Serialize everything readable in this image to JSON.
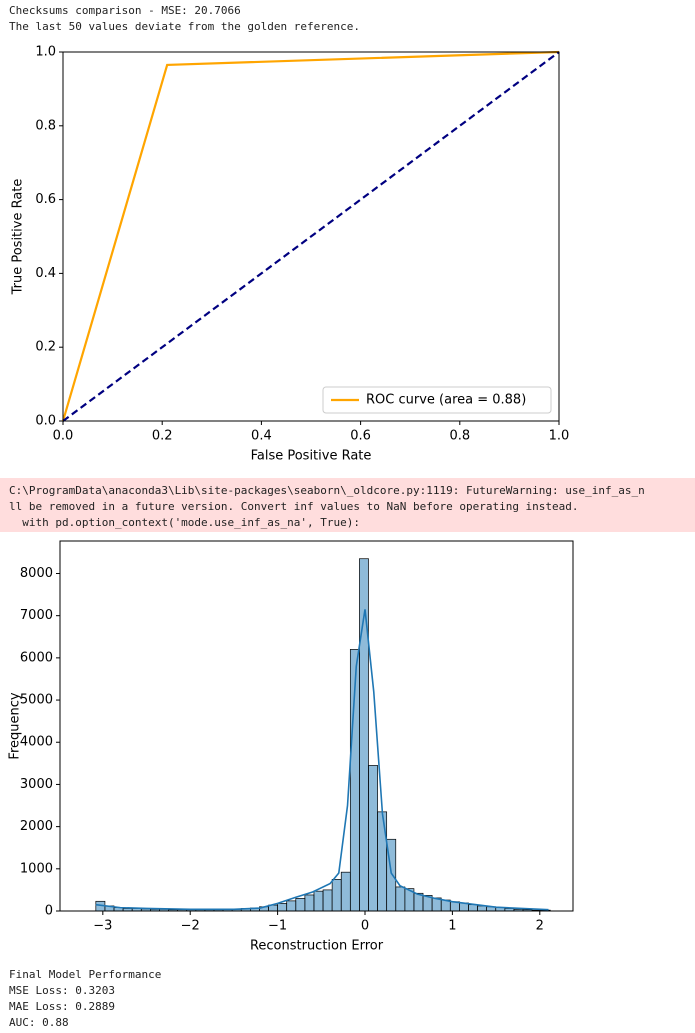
{
  "log_top": [
    "Checksums comparison - MSE: 20.7066",
    "The last 50 values deviate from the golden reference."
  ],
  "warning": [
    "C:\\ProgramData\\anaconda3\\Lib\\site-packages\\seaborn\\_oldcore.py:1119: FutureWarning: use_inf_as_n",
    "ll be removed in a future version. Convert inf values to NaN before operating instead.",
    "  with pd.option_context('mode.use_inf_as_na', True):"
  ],
  "log_bottom": [
    "Final Model Performance",
    "MSE Loss: 0.3203",
    "MAE Loss: 0.2889",
    "AUC: 0.88"
  ],
  "chart_data": [
    {
      "type": "line",
      "xlabel": "False Positive Rate",
      "ylabel": "True Positive Rate",
      "xlim": [
        0,
        1
      ],
      "ylim": [
        0,
        1
      ],
      "xticks": [
        {
          "value": 0,
          "label": "0.0"
        },
        {
          "value": 0.2,
          "label": "0.2"
        },
        {
          "value": 0.4,
          "label": "0.4"
        },
        {
          "value": 0.6,
          "label": "0.6"
        },
        {
          "value": 0.8,
          "label": "0.8"
        },
        {
          "value": 1,
          "label": "1.0"
        }
      ],
      "yticks": [
        {
          "value": 0,
          "label": "0.0"
        },
        {
          "value": 0.2,
          "label": "0.2"
        },
        {
          "value": 0.4,
          "label": "0.4"
        },
        {
          "value": 0.6,
          "label": "0.6"
        },
        {
          "value": 0.8,
          "label": "0.8"
        },
        {
          "value": 1,
          "label": "1.0"
        }
      ],
      "legend": "lower right",
      "series": [
        {
          "name": "ROC curve (area = 0.88)",
          "color": "#ffa500",
          "x": [
            0,
            0.21,
            1
          ],
          "values": [
            0,
            0.965,
            1
          ]
        },
        {
          "color": "#000080",
          "dash": true,
          "x": [
            0,
            1
          ],
          "values": [
            0,
            1
          ]
        }
      ]
    },
    {
      "type": "histogram",
      "xlabel": "Reconstruction Error",
      "ylabel": "Frequency",
      "xlim": [
        -3.49,
        2.38
      ],
      "ylim": [
        0,
        8770
      ],
      "xticks": [
        {
          "value": -3,
          "label": "−3"
        },
        {
          "value": -2,
          "label": "−2"
        },
        {
          "value": -1,
          "label": "−1"
        },
        0,
        1,
        2
      ],
      "yticks": [
        0,
        1000,
        2000,
        3000,
        4000,
        5000,
        6000,
        7000,
        8000
      ],
      "color": "#1f77b4",
      "bins": [
        -3.08,
        -2.976,
        -2.872,
        -2.768,
        -2.664,
        -2.56,
        -2.456,
        -2.352,
        -2.248,
        -2.144,
        -2.04,
        -1.936,
        -1.832,
        -1.728,
        -1.624,
        -1.52,
        -1.416,
        -1.312,
        -1.208,
        -1.104,
        -1.0,
        -0.896,
        -0.792,
        -0.688,
        -0.584,
        -0.48,
        -0.376,
        -0.272,
        -0.168,
        -0.064,
        0.04,
        0.144,
        0.248,
        0.352,
        0.456,
        0.56,
        0.664,
        0.768,
        0.872,
        0.976,
        1.08,
        1.184,
        1.288,
        1.392,
        1.496,
        1.6,
        1.704,
        1.808,
        1.912,
        2.016,
        2.12
      ],
      "values": [
        230,
        120,
        80,
        60,
        60,
        50,
        40,
        40,
        30,
        30,
        30,
        30,
        30,
        30,
        40,
        40,
        60,
        70,
        100,
        140,
        180,
        240,
        300,
        380,
        470,
        500,
        750,
        920,
        6200,
        8350,
        3450,
        2350,
        1700,
        570,
        530,
        420,
        370,
        310,
        260,
        220,
        190,
        150,
        120,
        100,
        80,
        60,
        40,
        30,
        20,
        20
      ],
      "kde": {
        "color": "#1f77b4",
        "x": [
          -3.08,
          -2.8,
          -2.5,
          -2,
          -1.5,
          -1.2,
          -1,
          -0.8,
          -0.6,
          -0.4,
          -0.3,
          -0.2,
          -0.1,
          0,
          0.1,
          0.2,
          0.3,
          0.4,
          0.6,
          0.8,
          1,
          1.5,
          2.1
        ],
        "values": [
          150,
          80,
          60,
          40,
          40,
          70,
          180,
          320,
          450,
          650,
          900,
          2500,
          5800,
          7150,
          5200,
          2300,
          900,
          600,
          400,
          300,
          220,
          90,
          30
        ]
      }
    }
  ]
}
